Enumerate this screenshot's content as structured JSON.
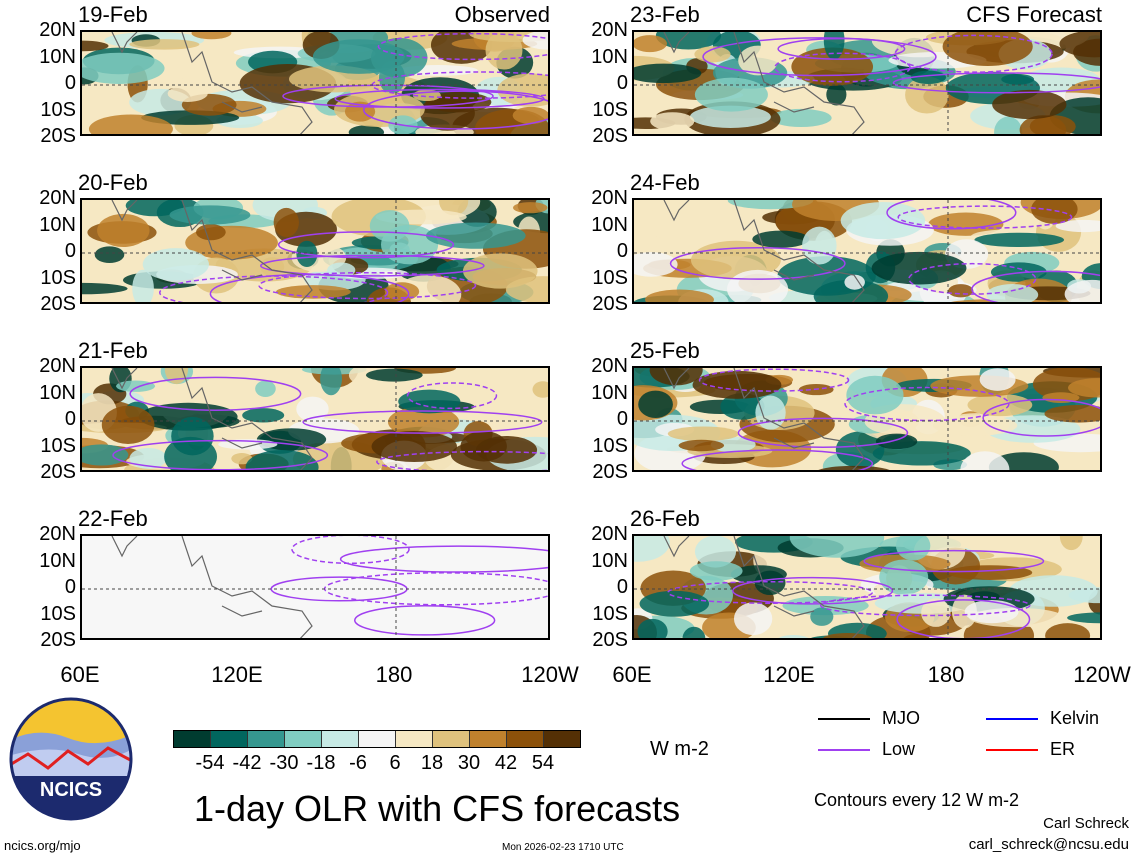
{
  "columns": [
    {
      "type_label": "Observed",
      "panels": [
        {
          "date": "19-Feb",
          "missing": false
        },
        {
          "date": "20-Feb",
          "missing": false
        },
        {
          "date": "21-Feb",
          "missing": false
        },
        {
          "date": "22-Feb",
          "missing": true
        }
      ]
    },
    {
      "type_label": "CFS Forecast",
      "panels": [
        {
          "date": "23-Feb",
          "missing": false
        },
        {
          "date": "24-Feb",
          "missing": false
        },
        {
          "date": "25-Feb",
          "missing": false
        },
        {
          "date": "26-Feb",
          "missing": false
        }
      ]
    }
  ],
  "lat_labels": [
    "20N",
    "10N",
    "0",
    "10S",
    "20S"
  ],
  "lon_labels": [
    "60E",
    "120E",
    "180",
    "120W"
  ],
  "colorbar": {
    "colors": [
      "#003c30",
      "#01665e",
      "#35978f",
      "#80cdc1",
      "#c7eae5",
      "#f5f5f5",
      "#f6e8c3",
      "#dfc27d",
      "#bf812d",
      "#8c510a",
      "#543005"
    ],
    "labels": [
      "-54",
      "-42",
      "-30",
      "-18",
      "-6",
      "6",
      "18",
      "30",
      "42",
      "54"
    ],
    "units": "W m-2"
  },
  "legend": [
    {
      "label": "MJO",
      "color": "#000000"
    },
    {
      "label": "Kelvin",
      "color": "#0000ff"
    },
    {
      "label": "Low",
      "color": "#a040f0"
    },
    {
      "label": "ER",
      "color": "#ff0000"
    }
  ],
  "contour_note": "Contours every 12 W m-2",
  "title": "1-day OLR with CFS forecasts",
  "timestamp": "Mon 2026-02-23 1710 UTC",
  "website": "ncics.org/mjo",
  "author": "Carl Schreck",
  "email": "carl_schreck@ncsu.edu",
  "logo_text": "NCICS",
  "accent_colors": {
    "contour": "#a040f0"
  }
}
